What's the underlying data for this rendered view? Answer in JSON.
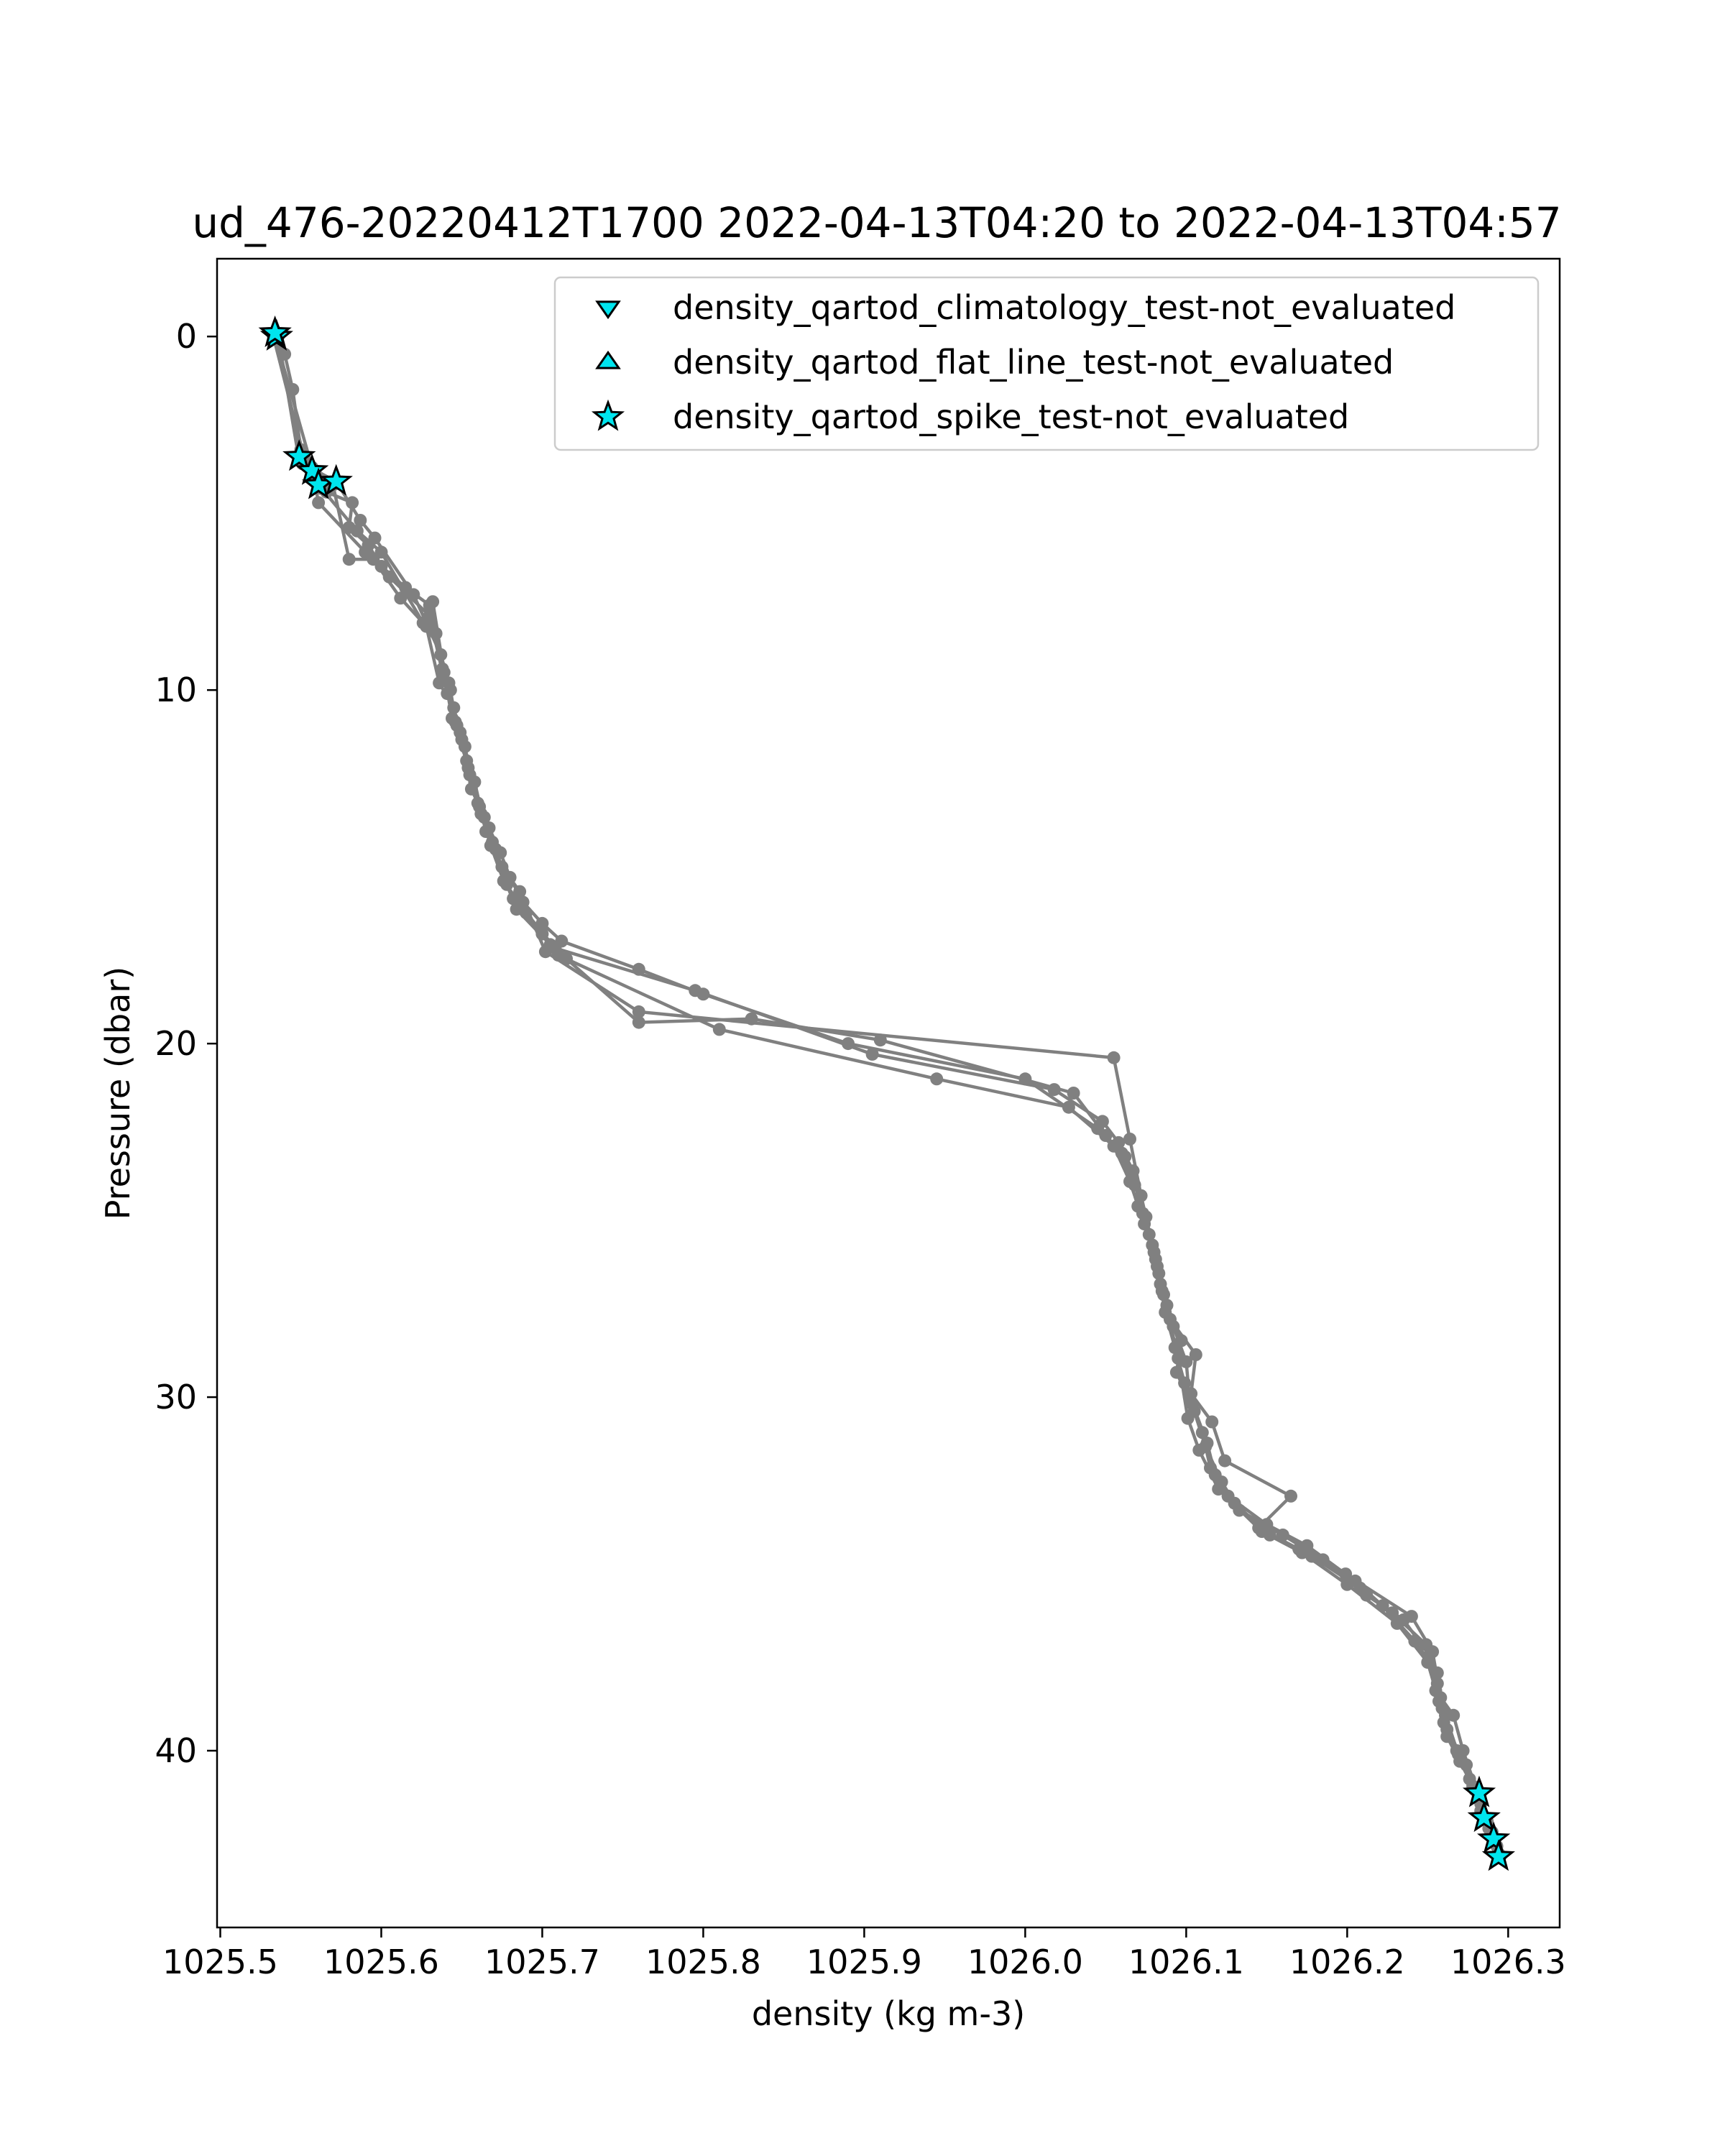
{
  "chart_data": {
    "type": "line",
    "title": "ud_476-20220412T1700 2022-04-13T04:20 to 2022-04-13T04:57",
    "xlabel": "density (kg m-3)",
    "ylabel": "Pressure (dbar)",
    "xlim": [
      1025.498,
      1026.332
    ],
    "ylim": [
      45.0,
      -2.2
    ],
    "y_inverted": true,
    "grid": false,
    "legend_position": "top-right",
    "x_ticks": [
      1025.5,
      1025.6,
      1025.7,
      1025.8,
      1025.9,
      1026.0,
      1026.1,
      1026.2,
      1026.3
    ],
    "x_tick_labels": [
      "1025.5",
      "1025.6",
      "1025.7",
      "1025.8",
      "1025.9",
      "1026.0",
      "1026.1",
      "1026.2",
      "1026.3"
    ],
    "y_ticks": [
      0,
      10,
      20,
      30,
      40
    ],
    "y_tick_labels": [
      "0",
      "10",
      "20",
      "30",
      "40"
    ],
    "colors": {
      "profile": "#808080",
      "marker_fill": "#00e5ee",
      "marker_edge": "#000000"
    },
    "series": [
      {
        "marker": "circle",
        "color": "#808080",
        "points": [
          [
            1025.535,
            0.0
          ],
          [
            1025.54,
            0.5
          ],
          [
            1025.545,
            1.5
          ],
          [
            1025.55,
            3.2
          ],
          [
            1025.558,
            3.9
          ],
          [
            1025.566,
            4.4
          ],
          [
            1025.582,
            4.7
          ],
          [
            1025.58,
            5.4
          ],
          [
            1025.592,
            5.9
          ],
          [
            1025.6,
            6.5
          ],
          [
            1025.615,
            7.1
          ],
          [
            1025.63,
            7.6
          ],
          [
            1025.634,
            8.4
          ],
          [
            1025.638,
            9.4
          ],
          [
            1025.643,
            10.0
          ],
          [
            1025.646,
            10.9
          ],
          [
            1025.652,
            11.6
          ],
          [
            1025.655,
            12.4
          ],
          [
            1025.66,
            13.2
          ],
          [
            1025.667,
            13.9
          ],
          [
            1025.674,
            14.6
          ],
          [
            1025.68,
            15.3
          ],
          [
            1025.688,
            16.0
          ],
          [
            1025.7,
            16.6
          ],
          [
            1025.712,
            17.1
          ],
          [
            1025.76,
            17.9
          ],
          [
            1025.8,
            18.6
          ],
          [
            1025.89,
            20.0
          ],
          [
            1026.0,
            21.0
          ],
          [
            1026.045,
            22.4
          ],
          [
            1026.062,
            23.2
          ],
          [
            1026.068,
            24.0
          ],
          [
            1026.075,
            24.9
          ],
          [
            1026.08,
            25.9
          ],
          [
            1026.085,
            27.0
          ],
          [
            1026.092,
            28.0
          ],
          [
            1026.1,
            29.0
          ],
          [
            1026.102,
            30.0
          ],
          [
            1026.11,
            31.0
          ],
          [
            1026.115,
            32.0
          ],
          [
            1026.126,
            32.8
          ],
          [
            1026.15,
            33.6
          ],
          [
            1026.175,
            34.2
          ],
          [
            1026.205,
            35.2
          ],
          [
            1026.222,
            35.9
          ],
          [
            1026.242,
            36.9
          ],
          [
            1026.256,
            37.8
          ],
          [
            1026.259,
            38.8
          ],
          [
            1026.262,
            39.6
          ],
          [
            1026.27,
            40.3
          ],
          [
            1026.278,
            41.0
          ],
          [
            1026.283,
            41.7
          ],
          [
            1026.29,
            42.4
          ],
          [
            1026.295,
            43.0
          ]
        ]
      },
      {
        "marker": "circle",
        "color": "#808080",
        "points": [
          [
            1025.533,
            0.0
          ],
          [
            1025.552,
            3.4
          ],
          [
            1025.57,
            4.2
          ],
          [
            1025.58,
            6.3
          ],
          [
            1025.595,
            6.3
          ],
          [
            1025.612,
            7.4
          ],
          [
            1025.628,
            8.2
          ],
          [
            1025.636,
            9.8
          ],
          [
            1025.645,
            10.5
          ],
          [
            1025.65,
            11.4
          ],
          [
            1025.656,
            12.8
          ],
          [
            1025.664,
            13.6
          ],
          [
            1025.671,
            14.5
          ],
          [
            1025.678,
            15.5
          ],
          [
            1025.684,
            16.2
          ],
          [
            1025.705,
            17.2
          ],
          [
            1025.715,
            17.6
          ],
          [
            1025.76,
            19.4
          ],
          [
            1025.83,
            19.3
          ],
          [
            1025.91,
            19.9
          ],
          [
            1026.03,
            21.4
          ],
          [
            1026.05,
            22.6
          ],
          [
            1026.06,
            23.1
          ],
          [
            1026.07,
            24.6
          ],
          [
            1026.077,
            25.4
          ],
          [
            1026.083,
            26.5
          ],
          [
            1026.088,
            27.4
          ],
          [
            1026.097,
            28.4
          ],
          [
            1026.094,
            29.3
          ],
          [
            1026.105,
            30.4
          ],
          [
            1026.112,
            31.4
          ],
          [
            1026.122,
            32.4
          ],
          [
            1026.133,
            33.2
          ],
          [
            1026.16,
            33.9
          ],
          [
            1026.185,
            34.6
          ],
          [
            1026.212,
            35.6
          ],
          [
            1026.235,
            36.3
          ],
          [
            1026.251,
            37.3
          ],
          [
            1026.255,
            38.3
          ],
          [
            1026.266,
            39.0
          ],
          [
            1026.272,
            40.0
          ],
          [
            1026.281,
            41.2
          ],
          [
            1026.287,
            42.0
          ]
        ]
      },
      {
        "marker": "circle",
        "color": "#808080",
        "points": [
          [
            1025.534,
            0.0
          ],
          [
            1025.557,
            3.7
          ],
          [
            1025.561,
            4.7
          ],
          [
            1025.59,
            6.1
          ],
          [
            1025.605,
            6.8
          ],
          [
            1025.63,
            7.9
          ],
          [
            1025.641,
            10.1
          ],
          [
            1025.649,
            11.2
          ],
          [
            1025.658,
            12.6
          ],
          [
            1025.665,
            14.0
          ],
          [
            1025.682,
            15.9
          ],
          [
            1025.7,
            16.9
          ],
          [
            1025.71,
            17.5
          ],
          [
            1025.81,
            19.6
          ],
          [
            1025.945,
            21.0
          ],
          [
            1026.027,
            21.8
          ],
          [
            1026.055,
            22.9
          ],
          [
            1026.065,
            23.9
          ],
          [
            1026.074,
            25.1
          ],
          [
            1026.081,
            26.1
          ],
          [
            1026.086,
            27.1
          ],
          [
            1026.095,
            28.9
          ],
          [
            1026.101,
            30.6
          ],
          [
            1026.108,
            31.5
          ],
          [
            1026.12,
            32.6
          ],
          [
            1026.147,
            33.8
          ],
          [
            1026.172,
            34.4
          ],
          [
            1026.2,
            35.3
          ],
          [
            1026.231,
            36.4
          ],
          [
            1026.25,
            37.5
          ],
          [
            1026.257,
            38.6
          ],
          [
            1026.26,
            39.2
          ],
          [
            1026.268,
            40.0
          ],
          [
            1026.276,
            40.8
          ],
          [
            1026.285,
            41.9
          ],
          [
            1026.293,
            42.7
          ]
        ]
      },
      {
        "marker": "circle",
        "color": "#808080",
        "points": [
          [
            1025.536,
            0.0
          ],
          [
            1025.549,
            3.5
          ],
          [
            1025.563,
            4.3
          ],
          [
            1025.585,
            5.5
          ],
          [
            1025.6,
            6.1
          ],
          [
            1025.626,
            8.1
          ],
          [
            1025.632,
            7.5
          ],
          [
            1025.639,
            9.5
          ],
          [
            1025.644,
            10.8
          ],
          [
            1025.653,
            12.0
          ],
          [
            1025.661,
            13.3
          ],
          [
            1025.669,
            14.3
          ],
          [
            1025.675,
            15.0
          ],
          [
            1025.686,
            15.7
          ],
          [
            1025.702,
            17.4
          ],
          [
            1025.76,
            19.1
          ],
          [
            1026.055,
            20.4
          ],
          [
            1026.065,
            22.7
          ],
          [
            1026.072,
            24.3
          ],
          [
            1026.079,
            25.7
          ],
          [
            1026.084,
            26.8
          ],
          [
            1026.09,
            27.8
          ],
          [
            1026.106,
            28.8
          ],
          [
            1026.103,
            29.9
          ],
          [
            1026.116,
            30.7
          ],
          [
            1026.124,
            31.8
          ],
          [
            1026.165,
            32.8
          ],
          [
            1026.145,
            33.7
          ],
          [
            1026.17,
            34.3
          ],
          [
            1026.199,
            35.0
          ],
          [
            1026.24,
            36.2
          ],
          [
            1026.253,
            37.2
          ],
          [
            1026.258,
            38.5
          ],
          [
            1026.262,
            39.4
          ],
          [
            1026.274,
            40.4
          ],
          [
            1026.283,
            41.5
          ],
          [
            1026.29,
            42.3
          ]
        ]
      },
      {
        "marker": "circle",
        "color": "#808080",
        "points": [
          [
            1025.535,
            0.0
          ],
          [
            1025.551,
            3.6
          ],
          [
            1025.572,
            4.1
          ],
          [
            1025.587,
            5.2
          ],
          [
            1025.596,
            5.7
          ],
          [
            1025.62,
            7.3
          ],
          [
            1025.637,
            9.0
          ],
          [
            1025.642,
            9.8
          ],
          [
            1025.647,
            11.0
          ],
          [
            1025.654,
            12.2
          ],
          [
            1025.662,
            13.5
          ],
          [
            1025.668,
            14.4
          ],
          [
            1025.676,
            15.4
          ],
          [
            1025.69,
            16.3
          ],
          [
            1025.708,
            17.3
          ],
          [
            1025.795,
            18.5
          ],
          [
            1025.905,
            20.3
          ],
          [
            1026.018,
            21.3
          ],
          [
            1026.048,
            22.2
          ],
          [
            1026.058,
            22.8
          ],
          [
            1026.067,
            23.6
          ],
          [
            1026.073,
            24.8
          ],
          [
            1026.082,
            26.3
          ],
          [
            1026.087,
            27.6
          ],
          [
            1026.093,
            28.6
          ],
          [
            1026.099,
            29.6
          ],
          [
            1026.104,
            30.2
          ],
          [
            1026.113,
            31.3
          ],
          [
            1026.118,
            32.2
          ],
          [
            1026.13,
            33.0
          ],
          [
            1026.152,
            33.9
          ],
          [
            1026.178,
            34.5
          ],
          [
            1026.208,
            35.4
          ],
          [
            1026.228,
            36.1
          ],
          [
            1026.249,
            37.0
          ],
          [
            1026.256,
            38.1
          ],
          [
            1026.261,
            39.0
          ],
          [
            1026.269,
            40.1
          ],
          [
            1026.279,
            41.1
          ],
          [
            1026.288,
            42.2
          ],
          [
            1026.294,
            42.9
          ]
        ]
      },
      {
        "name": "density_qartod_climatology_test-not_evaluated",
        "marker": "triangle-down",
        "color": "#00e5ee",
        "points": []
      },
      {
        "name": "density_qartod_flat_line_test-not_evaluated",
        "marker": "triangle-up",
        "color": "#00e5ee",
        "points": []
      },
      {
        "name": "density_qartod_spike_test-not_evaluated",
        "marker": "star",
        "color": "#00e5ee",
        "points": [
          [
            1025.535,
            0.0
          ],
          [
            1025.534,
            -0.1
          ],
          [
            1025.549,
            3.4
          ],
          [
            1025.557,
            3.8
          ],
          [
            1025.561,
            4.2
          ],
          [
            1025.572,
            4.1
          ],
          [
            1026.282,
            41.2
          ],
          [
            1026.285,
            41.9
          ],
          [
            1026.291,
            42.5
          ],
          [
            1026.294,
            43.0
          ]
        ]
      }
    ]
  }
}
